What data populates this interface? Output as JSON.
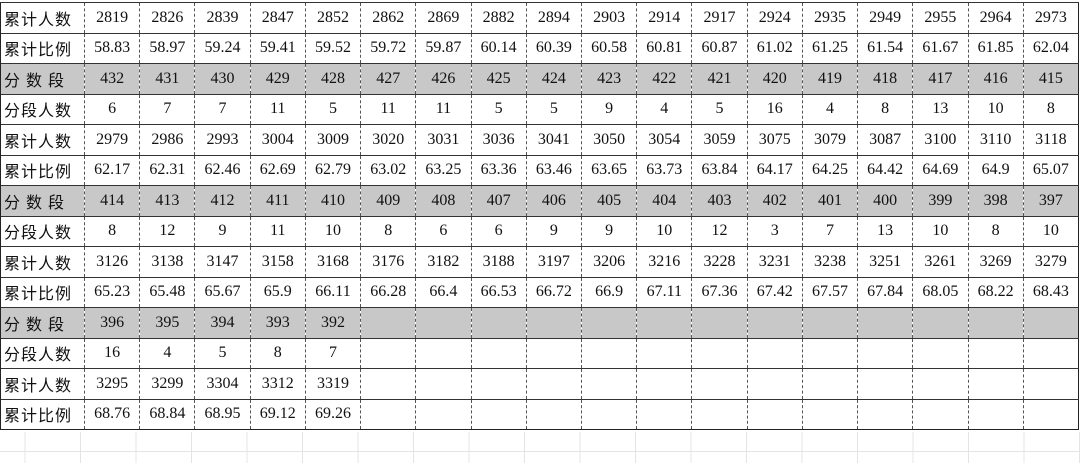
{
  "table": {
    "rows": [
      {
        "label": "累计人数",
        "cells": [
          2819,
          2826,
          2839,
          2847,
          2852,
          2862,
          2869,
          2882,
          2894,
          2903,
          2914,
          2917,
          2924,
          2935,
          2949,
          2955,
          2964,
          2973
        ]
      },
      {
        "label": "累计比例",
        "cells": [
          58.83,
          58.97,
          59.24,
          59.41,
          59.52,
          59.72,
          59.87,
          60.14,
          60.39,
          60.58,
          60.81,
          60.87,
          61.02,
          61.25,
          61.54,
          61.67,
          61.85,
          62.04
        ]
      },
      {
        "label": "分 数 段",
        "cells": [
          432,
          431,
          430,
          429,
          428,
          427,
          426,
          425,
          424,
          423,
          422,
          421,
          420,
          419,
          418,
          417,
          416,
          415
        ]
      },
      {
        "label": "分段人数",
        "cells": [
          6,
          7,
          7,
          11,
          5,
          11,
          11,
          5,
          5,
          9,
          4,
          5,
          16,
          4,
          8,
          13,
          10,
          8
        ]
      },
      {
        "label": "累计人数",
        "cells": [
          2979,
          2986,
          2993,
          3004,
          3009,
          3020,
          3031,
          3036,
          3041,
          3050,
          3054,
          3059,
          3075,
          3079,
          3087,
          3100,
          3110,
          3118
        ]
      },
      {
        "label": "累计比例",
        "cells": [
          62.17,
          62.31,
          62.46,
          62.69,
          62.79,
          63.02,
          63.25,
          63.36,
          63.46,
          63.65,
          63.73,
          63.84,
          64.17,
          64.25,
          64.42,
          64.69,
          64.9,
          65.07
        ]
      },
      {
        "label": "分 数 段",
        "cells": [
          414,
          413,
          412,
          411,
          410,
          409,
          408,
          407,
          406,
          405,
          404,
          403,
          402,
          401,
          400,
          399,
          398,
          397
        ]
      },
      {
        "label": "分段人数",
        "cells": [
          8,
          12,
          9,
          11,
          10,
          8,
          6,
          6,
          9,
          9,
          10,
          12,
          3,
          7,
          13,
          10,
          8,
          10
        ]
      },
      {
        "label": "累计人数",
        "cells": [
          3126,
          3138,
          3147,
          3158,
          3168,
          3176,
          3182,
          3188,
          3197,
          3206,
          3216,
          3228,
          3231,
          3238,
          3251,
          3261,
          3269,
          3279
        ]
      },
      {
        "label": "累计比例",
        "cells": [
          65.23,
          65.48,
          65.67,
          65.9,
          66.11,
          66.28,
          66.4,
          66.53,
          66.72,
          66.9,
          67.11,
          67.36,
          67.42,
          67.57,
          67.84,
          68.05,
          68.22,
          68.43
        ]
      },
      {
        "label": "分 数 段",
        "cells": [
          396,
          395,
          394,
          393,
          392
        ]
      },
      {
        "label": "分段人数",
        "cells": [
          16,
          4,
          5,
          8,
          7
        ]
      },
      {
        "label": "累计人数",
        "cells": [
          3295,
          3299,
          3304,
          3312,
          3319
        ]
      },
      {
        "label": "累计比例",
        "cells": [
          68.76,
          68.84,
          68.95,
          69.12,
          69.26
        ]
      }
    ]
  }
}
